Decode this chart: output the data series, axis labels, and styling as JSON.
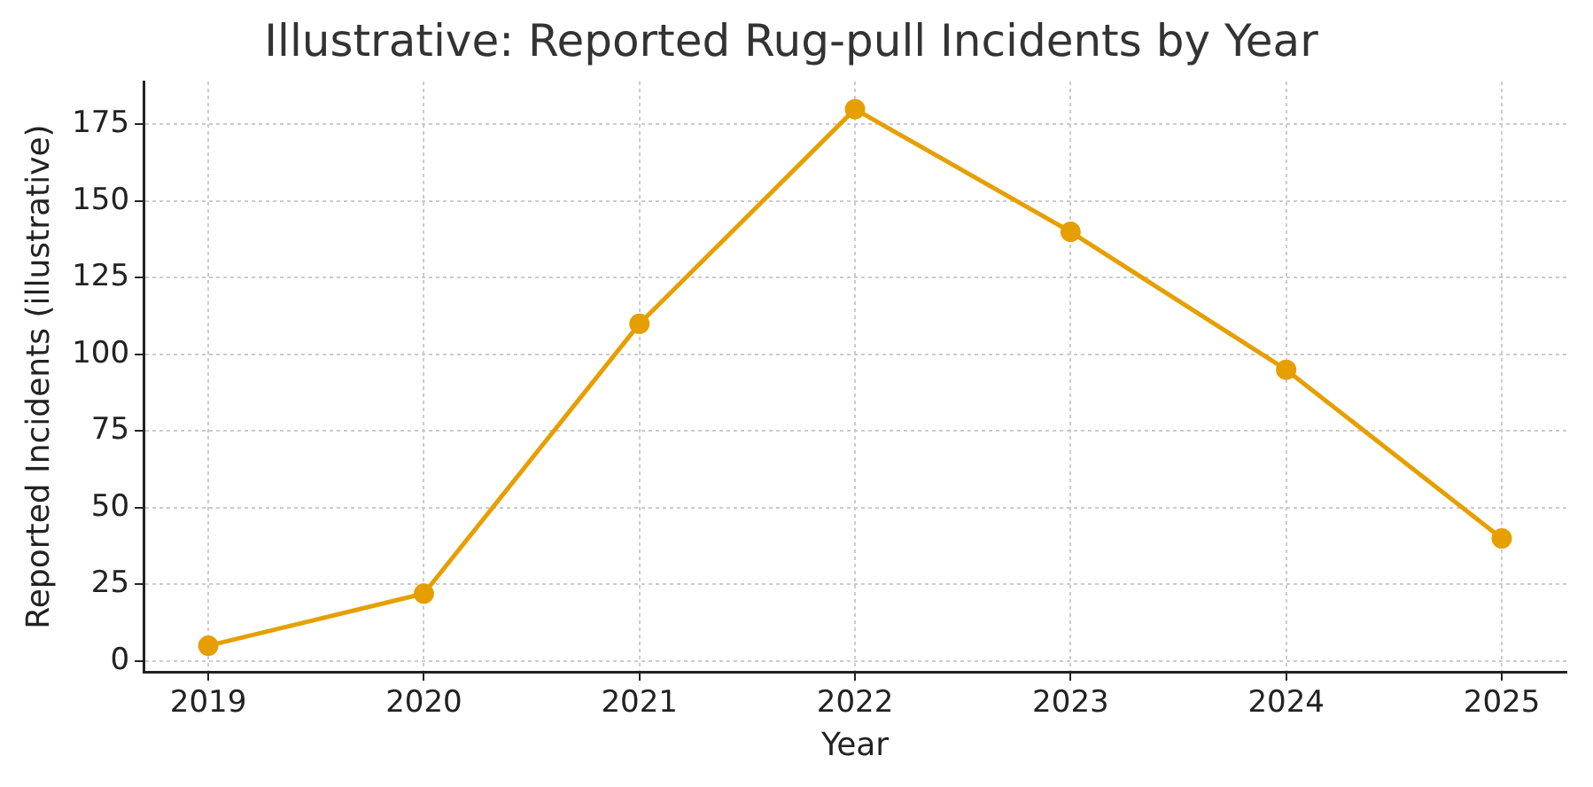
{
  "chart_data": {
    "type": "line",
    "title": "Illustrative: Reported Rug-pull Incidents by Year",
    "xlabel": "Year",
    "ylabel": "Reported Incidents (illustrative)",
    "x": [
      2019,
      2020,
      2021,
      2022,
      2023,
      2024,
      2025
    ],
    "series": [
      {
        "color": "#e69f00",
        "values": [
          5,
          22,
          110,
          180,
          140,
          95,
          40
        ]
      }
    ],
    "xlim": [
      2018.7,
      2025.3
    ],
    "xticks": [
      2019,
      2020,
      2021,
      2022,
      2023,
      2024,
      2025
    ],
    "ylim": [
      -3.5,
      189
    ],
    "yticks": [
      0,
      25,
      50,
      75,
      100,
      125,
      150,
      175
    ],
    "grid": true,
    "legend": false,
    "marker": "circle",
    "line_style": "solid"
  }
}
